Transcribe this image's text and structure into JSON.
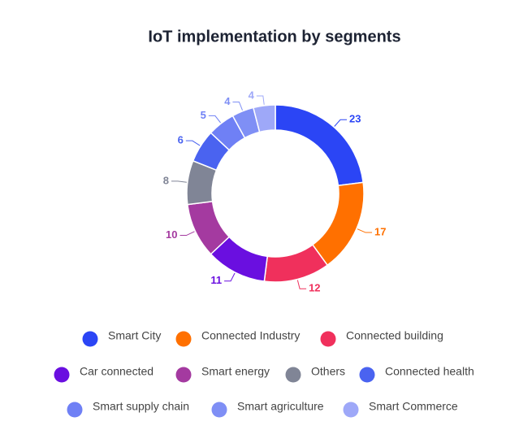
{
  "chart_data": {
    "type": "pie",
    "donut": true,
    "title": "IoT implementation by segments",
    "categories": [
      "Smart City",
      "Connected Industry",
      "Connected building",
      "Car connected",
      "Smart energy",
      "Others",
      "Connected health",
      "Smart supply chain",
      "Smart agriculture",
      "Smart Commerce"
    ],
    "values": [
      23,
      17,
      12,
      11,
      10,
      8,
      6,
      5,
      4,
      4
    ],
    "colors": [
      "#2b45f5",
      "#ff7000",
      "#f0305c",
      "#6a0fe0",
      "#a43aa0",
      "#808596",
      "#4a63f0",
      "#6f80f5",
      "#7f8ff5",
      "#9ea8f8"
    ]
  }
}
